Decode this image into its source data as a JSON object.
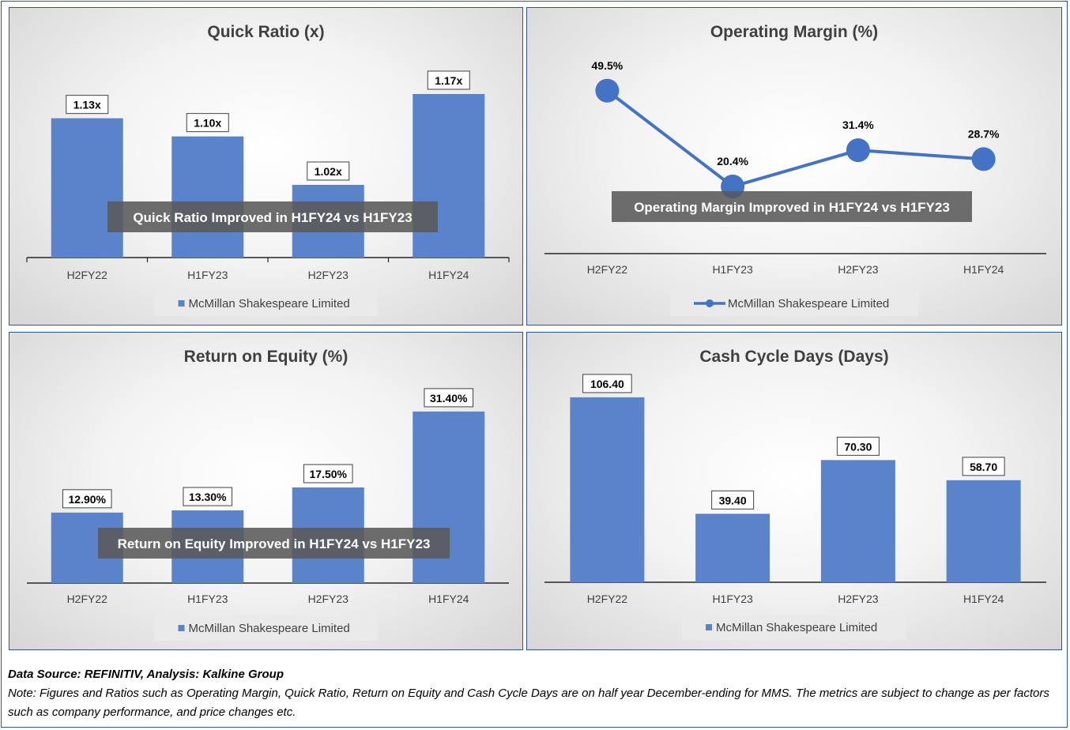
{
  "footer": {
    "source": "Data Source: REFINITIV, Analysis: Kalkine Group",
    "note": "Note: Figures and Ratios such as Operating Margin, Quick Ratio, Return on Equity and Cash Cycle Days are on half year December-ending for MMS. The metrics are subject to change as per factors such as company performance, and price changes etc."
  },
  "colors": {
    "bar": "#5b83c9",
    "line": "#4472c4",
    "annotation_bg": "#595959",
    "panel_border": "#2f5597"
  },
  "chart_data": [
    {
      "id": "quick",
      "type": "bar",
      "title": "Quick Ratio (x)",
      "categories": [
        "H2FY22",
        "H1FY23",
        "H2FY23",
        "H1FY24"
      ],
      "series": [
        {
          "name": "McMillan Shakespeare Limited",
          "values": [
            1.13,
            1.1,
            1.02,
            1.17
          ]
        }
      ],
      "data_labels": [
        "1.13x",
        "1.10x",
        "1.02x",
        "1.17x"
      ],
      "ylim": [
        0.9,
        1.2
      ],
      "annotation": "Quick Ratio Improved in H1FY24 vs H1FY23",
      "legend": "bottom"
    },
    {
      "id": "opm",
      "type": "line",
      "title": "Operating Margin (%)",
      "categories": [
        "H2FY22",
        "H1FY23",
        "H2FY23",
        "H1FY24"
      ],
      "series": [
        {
          "name": "McMillan Shakespeare Limited",
          "values": [
            49.5,
            20.4,
            31.4,
            28.7
          ]
        }
      ],
      "data_labels": [
        "49.5%",
        "20.4%",
        "31.4%",
        "28.7%"
      ],
      "ylim": [
        0,
        60
      ],
      "annotation": "Operating Margin Improved in H1FY24 vs H1FY23",
      "legend": "bottom"
    },
    {
      "id": "roe",
      "type": "bar",
      "title": "Return on Equity (%)",
      "categories": [
        "H2FY22",
        "H1FY23",
        "H2FY23",
        "H1FY24"
      ],
      "series": [
        {
          "name": "McMillan Shakespeare Limited",
          "values": [
            12.9,
            13.3,
            17.5,
            31.4
          ]
        }
      ],
      "data_labels": [
        "12.90%",
        "13.30%",
        "17.50%",
        "31.40%"
      ],
      "ylim": [
        0,
        35
      ],
      "annotation": "Return on Equity Improved in H1FY24 vs H1FY23",
      "legend": "bottom"
    },
    {
      "id": "ccd",
      "type": "bar",
      "title": "Cash Cycle Days (Days)",
      "categories": [
        "H2FY22",
        "H1FY23",
        "H2FY23",
        "H1FY24"
      ],
      "series": [
        {
          "name": "McMillan Shakespeare Limited",
          "values": [
            106.4,
            39.4,
            70.3,
            58.7
          ]
        }
      ],
      "data_labels": [
        "106.40",
        "39.40",
        "70.30",
        "58.70"
      ],
      "ylim": [
        0,
        120
      ],
      "legend": "bottom"
    }
  ]
}
